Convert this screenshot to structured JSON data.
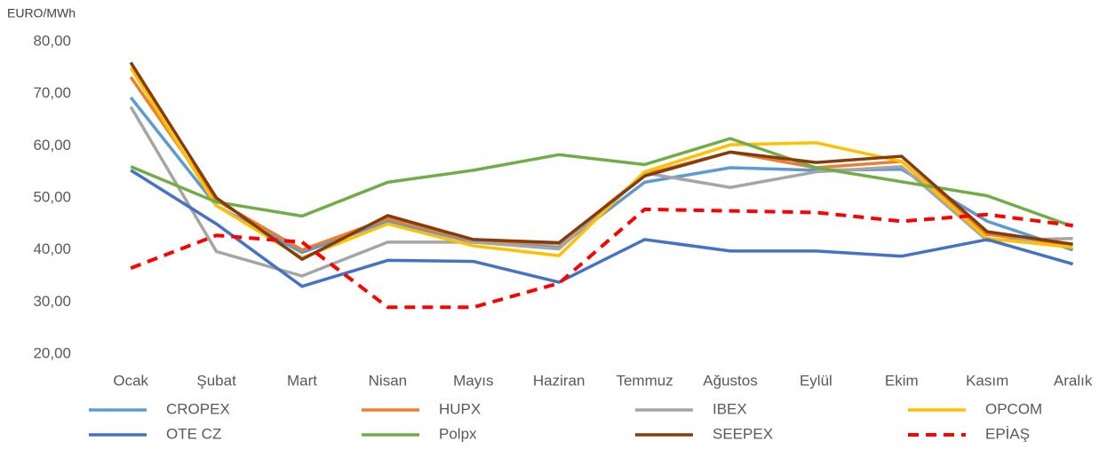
{
  "chart_data": {
    "type": "line",
    "y_label": "EURO/MWh",
    "categories": [
      "Ocak",
      "Şubat",
      "Mart",
      "Nisan",
      "Mayıs",
      "Haziran",
      "Temmuz",
      "Ağustos",
      "Eylül",
      "Ekim",
      "Kasım",
      "Aralık"
    ],
    "ylim": [
      20,
      80
    ],
    "yticks": [
      {
        "value": 20,
        "label": "20,00"
      },
      {
        "value": 30,
        "label": "30,00"
      },
      {
        "value": 40,
        "label": "40,00"
      },
      {
        "value": 50,
        "label": "50,00"
      },
      {
        "value": 60,
        "label": "60,00"
      },
      {
        "value": 70,
        "label": "70,00"
      },
      {
        "value": 80,
        "label": "80,00"
      }
    ],
    "grid": false,
    "legend": "bottom",
    "series": [
      {
        "name": "CROPEX",
        "color": "#5b9bd5",
        "values": [
          69.3,
          48.5,
          39.5,
          45.5,
          41.5,
          40.5,
          53,
          55.8,
          55.3,
          55.5,
          45.5,
          40
        ]
      },
      {
        "name": "HUPX",
        "color": "#ed7d31",
        "values": [
          73.2,
          49.5,
          40,
          46,
          41.8,
          41.2,
          54.5,
          58.8,
          55.8,
          57,
          43,
          41
        ]
      },
      {
        "name": "IBEX",
        "color": "#a5a5a5",
        "values": [
          67.5,
          39.7,
          35,
          41.5,
          41.5,
          40.2,
          54.8,
          52,
          55,
          56,
          41.8,
          42.2
        ]
      },
      {
        "name": "OPCOM",
        "color": "#ffc000",
        "values": [
          75,
          48.5,
          38.5,
          45,
          40.8,
          38.9,
          55,
          60.2,
          60.6,
          57,
          42.2,
          40.5
        ]
      },
      {
        "name": "OTE CZ",
        "color": "#4472c4",
        "values": [
          55.3,
          45,
          33,
          38,
          37.8,
          33.8,
          42,
          39.8,
          39.8,
          38.8,
          42,
          37.3
        ]
      },
      {
        "name": "Polpx",
        "color": "#70ad47",
        "values": [
          56,
          49.2,
          46.5,
          53,
          55.3,
          58.3,
          56.4,
          61.4,
          55.8,
          53.1,
          50.4,
          44.5
        ]
      },
      {
        "name": "SEEPEX",
        "color": "#843c0c",
        "values": [
          76,
          50,
          38.2,
          46.6,
          42,
          41.4,
          54.2,
          58.8,
          56.8,
          58,
          43.5,
          41.1
        ]
      },
      {
        "name": "EPİAŞ",
        "color": "#ff0000",
        "dashed": true,
        "values": [
          36.5,
          42.8,
          41.5,
          29,
          29,
          33.6,
          47.8,
          47.5,
          47.2,
          45.5,
          46.8,
          44.7
        ]
      }
    ]
  }
}
